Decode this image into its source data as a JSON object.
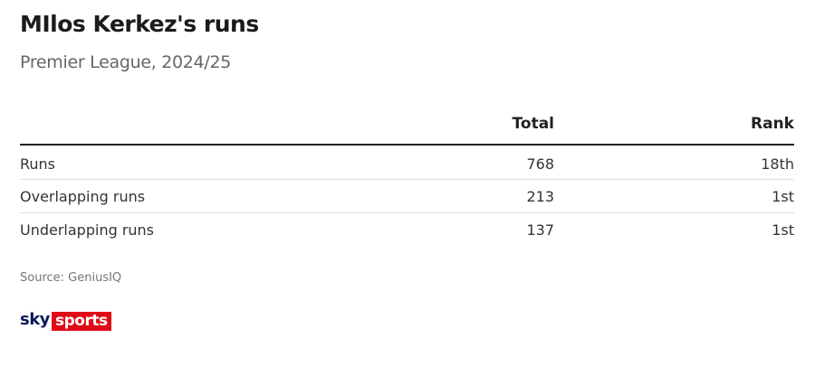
{
  "header": {
    "title": "MIlos Kerkez's runs",
    "subtitle": "Premier League, 2024/25"
  },
  "table": {
    "columns": [
      "Total",
      "Rank"
    ],
    "rows": [
      [
        "Runs",
        768,
        "18th"
      ],
      [
        "Overlapping runs",
        213,
        "1st"
      ],
      [
        "Underlapping runs",
        137,
        "1st"
      ]
    ]
  },
  "footer": {
    "source": "Source: GeniusIQ"
  },
  "logo": {
    "sky": "sky",
    "sports": "sports"
  }
}
